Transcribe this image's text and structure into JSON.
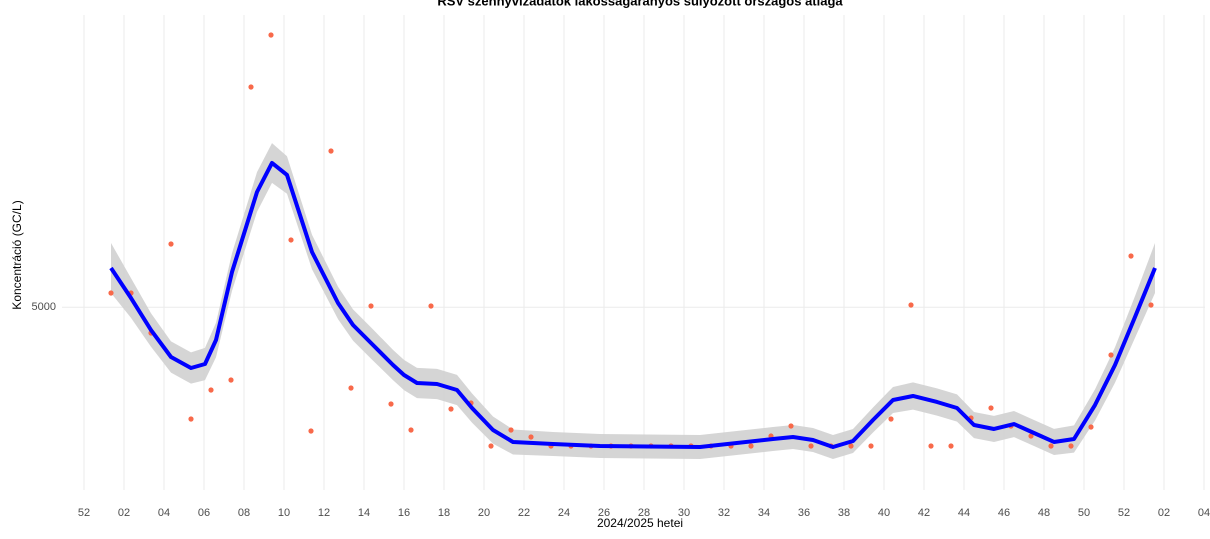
{
  "chart_data": {
    "type": "scatter_smooth",
    "title": "RSV szennyvízadatok lakosságarányos súlyozott országos átlaga",
    "x_label": "2024/2025 hetei",
    "y_label": "Koncentráció (GC/L)",
    "xlim": [
      -1.1,
      56.05
    ],
    "ylim": [
      1500,
      10600
    ],
    "xticks": [
      {
        "value": 0,
        "label": "52"
      },
      {
        "value": 2,
        "label": "02"
      },
      {
        "value": 4,
        "label": "04"
      },
      {
        "value": 6,
        "label": "06"
      },
      {
        "value": 8,
        "label": "08"
      },
      10,
      12,
      14,
      16,
      18,
      20,
      22,
      24,
      26,
      28,
      30,
      32,
      34,
      36,
      38,
      40,
      42,
      44,
      46,
      48,
      50,
      52,
      {
        "value": 54,
        "label": "02"
      },
      {
        "value": 56,
        "label": "04"
      }
    ],
    "yticks": [
      5000
    ],
    "grid": true,
    "points": {
      "color": "#f8694a",
      "x": [
        1.35,
        2.35,
        3.35,
        4.35,
        5.35,
        6.35,
        7.35,
        8.35,
        9.35,
        10.35,
        11.35,
        12.35,
        13.35,
        14.35,
        15.35,
        16.35,
        17.35,
        18.35,
        19.35,
        20.35,
        21.35,
        22.35,
        23.35,
        24.35,
        25.35,
        26.35,
        27.35,
        28.35,
        29.35,
        30.35,
        31.35,
        32.35,
        33.35,
        34.35,
        35.35,
        36.35,
        37.35,
        38.35,
        39.35,
        40.35,
        41.35,
        42.35,
        43.35,
        44.35,
        45.35,
        46.35,
        47.35,
        48.35,
        49.35,
        50.35,
        51.35,
        52.35,
        53.35
      ],
      "values": [
        5274,
        5274,
        4508,
        6213,
        2860,
        3416,
        3607,
        9221,
        10217,
        6290,
        2630,
        7995,
        3454,
        5025,
        3148,
        2649,
        5025,
        3052,
        3167,
        2343,
        2649,
        2515,
        2343,
        2343,
        2343,
        2343,
        2343,
        2343,
        2343,
        2343,
        2343,
        2343,
        2343,
        2534,
        2726,
        2343,
        2343,
        2343,
        2343,
        2860,
        5044,
        2343,
        2343,
        2879,
        3071,
        2726,
        2534,
        2343,
        2343,
        2707,
        4086,
        5983,
        5044
      ]
    },
    "smooth": {
      "color": "#0000ff",
      "band_color": "#d0d0d0",
      "x": [
        1.35,
        2.35,
        3.35,
        4.35,
        5.35,
        6.05,
        6.6,
        7.4,
        8.65,
        9.4,
        10.15,
        11.4,
        12.7,
        13.45,
        14.4,
        15.45,
        16,
        16.65,
        17.65,
        18.65,
        19.4,
        20.45,
        21.45,
        23.45,
        25.8,
        30.8,
        34.45,
        35.45,
        36.45,
        37.45,
        38.45,
        39.45,
        40.45,
        41.45,
        42.65,
        43.65,
        44.5,
        45.5,
        46.5,
        47.5,
        48.5,
        49.5,
        50.55,
        51.55,
        52.55,
        53.55
      ],
      "values": [
        5753,
        5178,
        4565,
        4048,
        3837,
        3914,
        4374,
        5676,
        7209,
        7765,
        7535,
        6060,
        5083,
        4661,
        4297,
        3895,
        3703,
        3550,
        3531,
        3416,
        3071,
        2649,
        2420,
        2381,
        2343,
        2324,
        2477,
        2515,
        2458,
        2324,
        2439,
        2841,
        3224,
        3301,
        3186,
        3071,
        2745,
        2669,
        2764,
        2592,
        2420,
        2477,
        3128,
        3895,
        4814,
        5753
      ],
      "lower": [
        5273,
        4798,
        4245,
        3748,
        3537,
        3604,
        4044,
        5316,
        6829,
        7385,
        7175,
        5730,
        4773,
        4361,
        3997,
        3605,
        3413,
        3260,
        3241,
        3126,
        2791,
        2389,
        2180,
        2151,
        2113,
        2094,
        2247,
        2285,
        2228,
        2094,
        2209,
        2601,
        2974,
        3041,
        2926,
        2811,
        2495,
        2419,
        2514,
        2342,
        2170,
        2217,
        2828,
        3555,
        4414,
        5273
      ],
      "upper": [
        6233,
        5558,
        4885,
        4348,
        4137,
        4224,
        4704,
        6036,
        7589,
        8145,
        7895,
        6390,
        5393,
        4961,
        4597,
        4185,
        3993,
        3840,
        3821,
        3706,
        3351,
        2909,
        2660,
        2611,
        2573,
        2554,
        2707,
        2745,
        2688,
        2554,
        2669,
        3081,
        3474,
        3561,
        3446,
        3331,
        2995,
        2919,
        3014,
        2842,
        2670,
        2737,
        3428,
        4235,
        5214,
        6233
      ]
    }
  }
}
